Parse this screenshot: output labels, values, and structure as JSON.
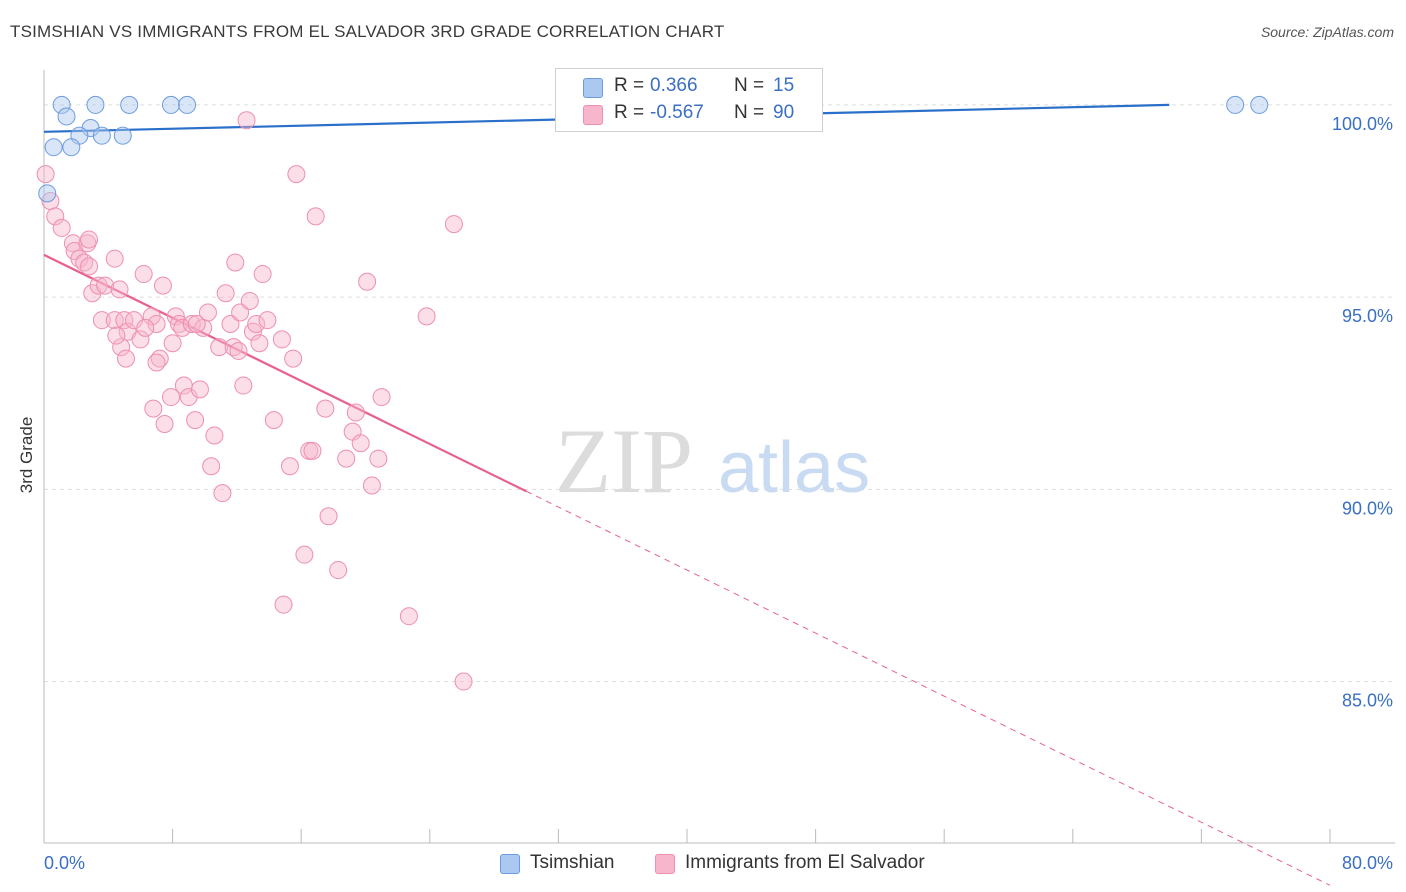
{
  "title": "TSIMSHIAN VS IMMIGRANTS FROM EL SALVADOR 3RD GRADE CORRELATION CHART",
  "source": "Source: ZipAtlas.com",
  "watermark": {
    "zip": "ZIP",
    "atlas": "atlas"
  },
  "legend": {
    "rows": [
      {
        "r_label": "R =",
        "r_value": "0.366",
        "n_label": "N =",
        "n_value": "15"
      },
      {
        "r_label": "R =",
        "r_value": "-0.567",
        "n_label": "N =",
        "n_value": "90"
      }
    ]
  },
  "bottom_legend": [
    "Tsimshian",
    "Immigrants from El Salvador"
  ],
  "colors": {
    "tsimshian_fill": "#aac8f0",
    "tsimshian_stroke": "#6c9be0",
    "tsimshian_line": "#2a6fc9",
    "salvador_fill": "#f7b6cb",
    "salvador_stroke": "#ee8fb0",
    "salvador_line": "#e8608f",
    "axis_label": "#3a6fc4",
    "grid": "#dddddd"
  },
  "chart_data": {
    "type": "scatter",
    "title": "TSIMSHIAN VS IMMIGRANTS FROM EL SALVADOR 3RD GRADE CORRELATION CHART",
    "xlabel": "",
    "ylabel": "3rd Grade",
    "xlim": [
      0,
      80
    ],
    "ylim": [
      80.8,
      100.7
    ],
    "x_tick_labels": [
      "0.0%",
      "80.0%"
    ],
    "y_ticks": [
      100,
      95,
      90,
      85
    ],
    "y_tick_labels": [
      "100.0%",
      "95.0%",
      "90.0%",
      "85.0%"
    ],
    "series": [
      {
        "name": "Tsimshian",
        "R": 0.366,
        "N": 15,
        "points": [
          [
            1.1,
            100.0
          ],
          [
            1.4,
            99.7
          ],
          [
            3.2,
            100.0
          ],
          [
            5.3,
            100.0
          ],
          [
            7.9,
            100.0
          ],
          [
            8.9,
            100.0
          ],
          [
            74.1,
            100.0
          ],
          [
            75.6,
            100.0
          ],
          [
            2.9,
            99.4
          ],
          [
            2.2,
            99.2
          ],
          [
            3.6,
            99.2
          ],
          [
            0.6,
            98.9
          ],
          [
            4.9,
            99.2
          ],
          [
            1.7,
            98.9
          ],
          [
            0.2,
            97.7
          ]
        ],
        "trend": {
          "x0": 0,
          "y0": 99.3,
          "x1": 70,
          "y1": 100.0,
          "solid_to": 70
        }
      },
      {
        "name": "Immigrants from El Salvador",
        "R": -0.567,
        "N": 90,
        "points": [
          [
            0.1,
            98.2
          ],
          [
            0.4,
            97.5
          ],
          [
            0.7,
            97.1
          ],
          [
            1.1,
            96.8
          ],
          [
            1.8,
            96.4
          ],
          [
            1.9,
            96.2
          ],
          [
            2.2,
            96.0
          ],
          [
            2.5,
            95.9
          ],
          [
            2.7,
            96.4
          ],
          [
            2.8,
            95.8
          ],
          [
            3.0,
            95.1
          ],
          [
            3.4,
            95.3
          ],
          [
            3.6,
            94.4
          ],
          [
            3.8,
            95.3
          ],
          [
            4.4,
            94.4
          ],
          [
            4.4,
            96.0
          ],
          [
            2.8,
            96.5
          ],
          [
            4.7,
            95.2
          ],
          [
            4.8,
            93.7
          ],
          [
            5.0,
            94.4
          ],
          [
            5.1,
            93.4
          ],
          [
            5.2,
            94.1
          ],
          [
            5.6,
            94.4
          ],
          [
            6.0,
            93.9
          ],
          [
            6.2,
            95.6
          ],
          [
            6.7,
            94.5
          ],
          [
            6.8,
            92.1
          ],
          [
            7.0,
            94.3
          ],
          [
            7.2,
            93.4
          ],
          [
            7.4,
            95.3
          ],
          [
            7.5,
            91.7
          ],
          [
            7.9,
            92.4
          ],
          [
            8.0,
            93.8
          ],
          [
            8.2,
            94.5
          ],
          [
            8.4,
            94.3
          ],
          [
            8.6,
            94.2
          ],
          [
            8.7,
            92.7
          ],
          [
            9.0,
            92.4
          ],
          [
            9.2,
            94.3
          ],
          [
            9.4,
            91.8
          ],
          [
            9.7,
            92.6
          ],
          [
            9.9,
            94.2
          ],
          [
            10.2,
            94.6
          ],
          [
            10.4,
            90.6
          ],
          [
            10.6,
            91.4
          ],
          [
            10.9,
            93.7
          ],
          [
            11.1,
            89.9
          ],
          [
            11.3,
            95.1
          ],
          [
            11.6,
            94.3
          ],
          [
            11.8,
            93.7
          ],
          [
            11.9,
            95.9
          ],
          [
            12.2,
            94.6
          ],
          [
            12.4,
            92.7
          ],
          [
            12.8,
            94.9
          ],
          [
            13.0,
            94.1
          ],
          [
            13.2,
            94.3
          ],
          [
            13.4,
            93.8
          ],
          [
            13.6,
            95.6
          ],
          [
            13.9,
            94.4
          ],
          [
            14.3,
            91.8
          ],
          [
            14.8,
            93.9
          ],
          [
            15.3,
            90.6
          ],
          [
            15.5,
            93.4
          ],
          [
            15.7,
            98.2
          ],
          [
            16.5,
            91.0
          ],
          [
            16.7,
            91.0
          ],
          [
            16.9,
            97.1
          ],
          [
            17.5,
            92.1
          ],
          [
            17.7,
            89.3
          ],
          [
            18.3,
            87.9
          ],
          [
            18.8,
            90.8
          ],
          [
            19.2,
            91.5
          ],
          [
            19.4,
            92.0
          ],
          [
            19.7,
            91.2
          ],
          [
            20.1,
            95.4
          ],
          [
            20.4,
            90.1
          ],
          [
            20.8,
            90.8
          ],
          [
            21.0,
            92.4
          ],
          [
            22.7,
            86.7
          ],
          [
            23.8,
            94.5
          ],
          [
            25.5,
            96.9
          ],
          [
            26.1,
            85.0
          ],
          [
            12.6,
            99.6
          ],
          [
            14.9,
            87.0
          ],
          [
            16.2,
            88.3
          ],
          [
            7.0,
            93.3
          ],
          [
            9.5,
            94.3
          ],
          [
            12.1,
            93.6
          ],
          [
            6.3,
            94.2
          ],
          [
            4.5,
            94.0
          ]
        ],
        "trend": {
          "x0": 0,
          "y0": 96.1,
          "x1": 80,
          "y1": 79.7,
          "solid_to": 30
        }
      }
    ]
  }
}
